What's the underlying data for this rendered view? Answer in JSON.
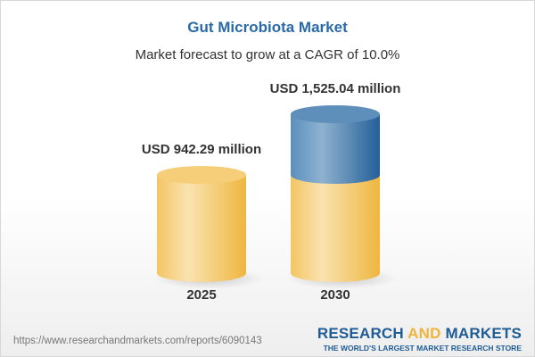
{
  "chart_data": {
    "type": "bar",
    "style": "3d-cylinder",
    "title": "Gut Microbiota Market",
    "subtitle": "Market forecast to grow at a CAGR of 10.0%",
    "categories": [
      "2025",
      "2030"
    ],
    "values": [
      942.29,
      1525.04
    ],
    "data_labels": [
      "USD 942.29 million",
      "USD 1,525.04 million"
    ],
    "unit": "USD million",
    "colors": {
      "base": "#f5c35c",
      "growth": "#3f7eb3",
      "title": "#2a6aa8"
    }
  },
  "footer": {
    "url": "https://www.researchandmarkets.com/reports/6090143",
    "logo_part1": "RESEARCH ",
    "logo_part2": "AND",
    "logo_part3": " MARKETS",
    "logo_tagline": "THE WORLD'S LARGEST MARKET RESEARCH STORE"
  }
}
